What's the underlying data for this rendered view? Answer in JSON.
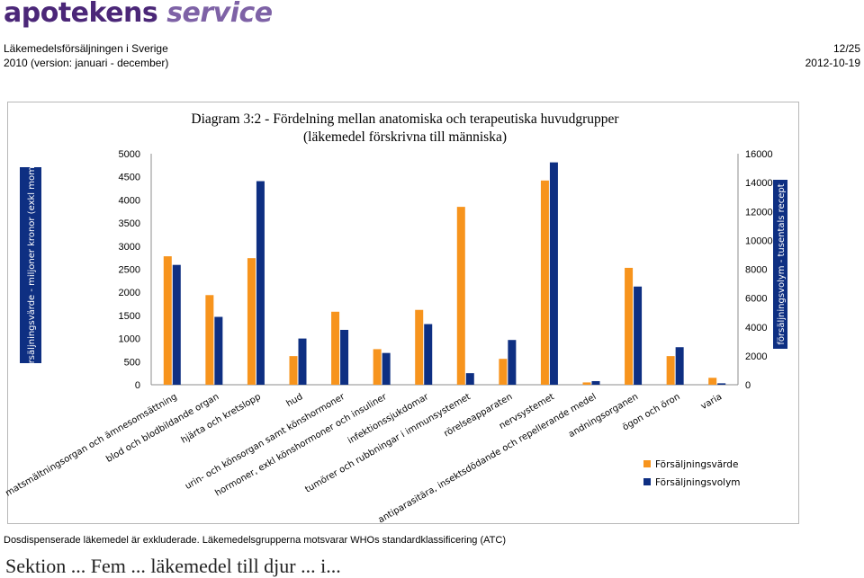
{
  "header": {
    "logo_part1": "apotekens",
    "logo_part2": "service",
    "report_title": "Läkemedelsförsäljningen i Sverige",
    "report_subtitle": "2010 (version: januari - december)",
    "page": "12/25",
    "date": "2012-10-19"
  },
  "footnote": "Dosdispenserade läkemedel är exkluderade. Läkemedelsgrupperna motsvarar WHOs standardklassificering (ATC)",
  "cutoff_line": "Sektion ... Fem ... läkemedel till djur ... i...",
  "colors": {
    "series1": "#F7941D",
    "series2": "#0E2F82",
    "ylabel_band": "#0E2F82",
    "logo_dark": "#4B2778",
    "logo_light": "#7E62A6"
  },
  "chart_data": {
    "type": "bar",
    "title_line1": "Diagram 3:2 - Fördelning mellan anatomiska och terapeutiska huvudgrupper",
    "title_line2": "(läkemedel förskrivna till människa)",
    "ylabel_left": "försäljningsvärde - miljoner kronor (exkl moms)",
    "ylabel_right": "försäljningsvolym - tusentals recept",
    "ylim_left": [
      0,
      5000
    ],
    "ylim_right": [
      0,
      16000
    ],
    "yticks_left": [
      "0",
      "500",
      "1000",
      "1500",
      "2000",
      "2500",
      "3000",
      "3500",
      "4000",
      "4500",
      "5000"
    ],
    "yticks_right": [
      "0",
      "2000",
      "4000",
      "6000",
      "8000",
      "10000",
      "12000",
      "14000",
      "16000"
    ],
    "categories": [
      "matsmältningsorgan och ämnesomsättning",
      "blod och blodbildande organ",
      "hjärta och kretslopp",
      "hud",
      "urin- och könsorgan samt könshormoner",
      "hormoner, exkl könshormoner och insuliner",
      "infektionssjukdomar",
      "tumörer och rubbningar i immunsystemet",
      "rörelseapparaten",
      "nervsystemet",
      "antiparasitära, insektsdödande och repellerande medel",
      "andningsorganen",
      "ögon och öron",
      "varia"
    ],
    "series": [
      {
        "name": "Försäljningsvärde",
        "axis": "left",
        "values": [
          2780,
          1940,
          2740,
          620,
          1580,
          770,
          1620,
          3850,
          560,
          4420,
          50,
          2530,
          620,
          150
        ]
      },
      {
        "name": "Försäljningsvolym",
        "axis": "right",
        "values": [
          8300,
          4700,
          14100,
          3200,
          3800,
          2200,
          4200,
          800,
          3100,
          15400,
          250,
          6800,
          2600,
          100
        ]
      }
    ],
    "legend_position": "bottom-right",
    "grid": false
  }
}
